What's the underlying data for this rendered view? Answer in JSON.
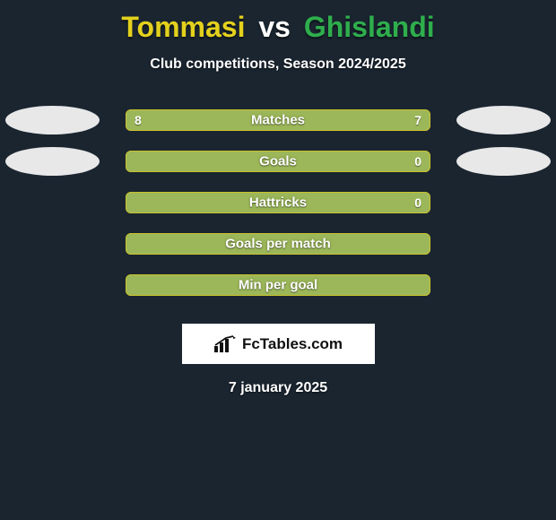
{
  "title": {
    "player1": "Tommasi",
    "vs": "vs",
    "player2": "Ghislandi",
    "p1_color": "#e4d11d",
    "vs_color": "#ffffff",
    "p2_color": "#2fae4d"
  },
  "subtitle": "Club competitions, Season 2024/2025",
  "date": "7 january 2025",
  "logo_text": "FcTables.com",
  "background_color": "#1a2530",
  "palette": {
    "p1_fill": "#e8e8e8",
    "p2_fill": "#e8e8e8",
    "bar_fill": "#9cb759",
    "bar_border": "#c9c12e"
  },
  "rows": [
    {
      "label": "Matches",
      "left": "8",
      "right": "7",
      "show_ellipses": true
    },
    {
      "label": "Goals",
      "left": "",
      "right": "0",
      "show_ellipses": true
    },
    {
      "label": "Hattricks",
      "left": "",
      "right": "0",
      "show_ellipses": false
    },
    {
      "label": "Goals per match",
      "left": "",
      "right": "",
      "show_ellipses": false
    },
    {
      "label": "Min per goal",
      "left": "",
      "right": "",
      "show_ellipses": false
    }
  ]
}
